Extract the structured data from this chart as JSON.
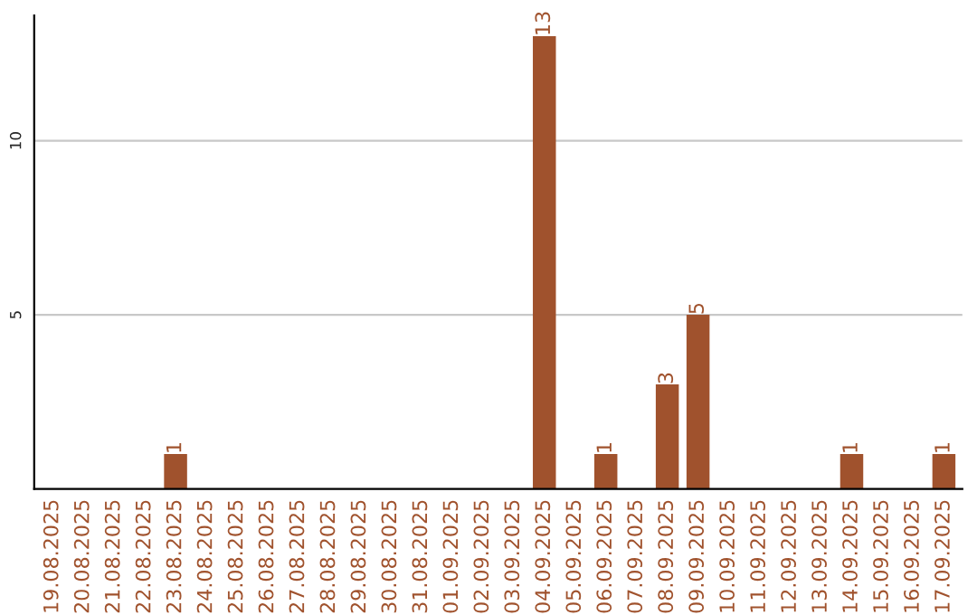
{
  "chart_data": {
    "type": "bar",
    "categories": [
      "19.08.2025",
      "20.08.2025",
      "21.08.2025",
      "22.08.2025",
      "23.08.2025",
      "24.08.2025",
      "25.08.2025",
      "26.08.2025",
      "27.08.2025",
      "28.08.2025",
      "29.08.2025",
      "30.08.2025",
      "31.08.2025",
      "01.09.2025",
      "02.09.2025",
      "03.09.2025",
      "04.09.2025",
      "05.09.2025",
      "06.09.2025",
      "07.09.2025",
      "08.09.2025",
      "09.09.2025",
      "10.09.2025",
      "11.09.2025",
      "12.09.2025",
      "13.09.2025",
      "14.09.2025",
      "15.09.2025",
      "16.09.2025",
      "17.09.2025"
    ],
    "values": [
      0,
      0,
      0,
      0,
      1,
      0,
      0,
      0,
      0,
      0,
      0,
      0,
      0,
      0,
      0,
      0,
      13,
      0,
      1,
      0,
      3,
      5,
      0,
      0,
      0,
      0,
      1,
      0,
      0,
      1
    ],
    "value_labels": [
      null,
      null,
      null,
      null,
      "1",
      null,
      null,
      null,
      null,
      null,
      null,
      null,
      null,
      null,
      null,
      null,
      "13",
      null,
      "1",
      null,
      "3",
      "5",
      null,
      null,
      null,
      null,
      "1",
      null,
      null,
      "1"
    ],
    "color": "#a0522d",
    "ylim": [
      0,
      13.6
    ],
    "yticks": [
      5,
      10
    ],
    "grid": "y"
  }
}
